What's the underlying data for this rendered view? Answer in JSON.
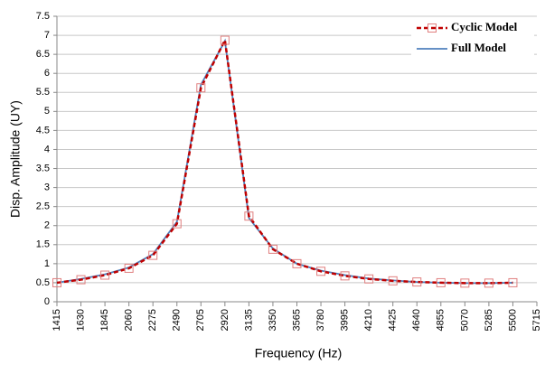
{
  "chart_data": {
    "type": "line",
    "x_label": "Frequency (Hz)",
    "y_label": "Disp. Amplitude (UY)",
    "x": [
      1415,
      1630,
      1845,
      2060,
      2275,
      2490,
      2705,
      2920,
      3135,
      3350,
      3565,
      3780,
      3995,
      4210,
      4425,
      4640,
      4855,
      5070,
      5285,
      5500
    ],
    "series": [
      {
        "name": "Cyclic Model",
        "color": "#c00000",
        "dashed": true,
        "marker": "square",
        "marker_color": "#e07f7f",
        "values": [
          0.5,
          0.58,
          0.7,
          0.88,
          1.22,
          2.05,
          5.62,
          6.87,
          2.25,
          1.38,
          1.0,
          0.8,
          0.68,
          0.6,
          0.55,
          0.52,
          0.5,
          0.49,
          0.49,
          0.5
        ]
      },
      {
        "name": "Full Model",
        "color": "#4f81bd",
        "dashed": false,
        "values": [
          0.5,
          0.6,
          0.72,
          0.9,
          1.25,
          2.1,
          5.7,
          6.85,
          2.2,
          1.4,
          1.0,
          0.82,
          0.7,
          0.61,
          0.56,
          0.52,
          0.5,
          0.49,
          0.49,
          0.5
        ]
      }
    ],
    "xlim": [
      1415,
      5715
    ],
    "xticks": [
      1415,
      1630,
      1845,
      2060,
      2275,
      2490,
      2705,
      2920,
      3135,
      3350,
      3565,
      3780,
      3995,
      4210,
      4425,
      4640,
      4855,
      5070,
      5285,
      5500,
      5715
    ],
    "ylim": [
      0,
      7.5
    ],
    "yticks": [
      0,
      0.5,
      1,
      1.5,
      2,
      2.5,
      3,
      3.5,
      4,
      4.5,
      5,
      5.5,
      6,
      6.5,
      7,
      7.5
    ],
    "grid": true,
    "legend": "top-right"
  }
}
